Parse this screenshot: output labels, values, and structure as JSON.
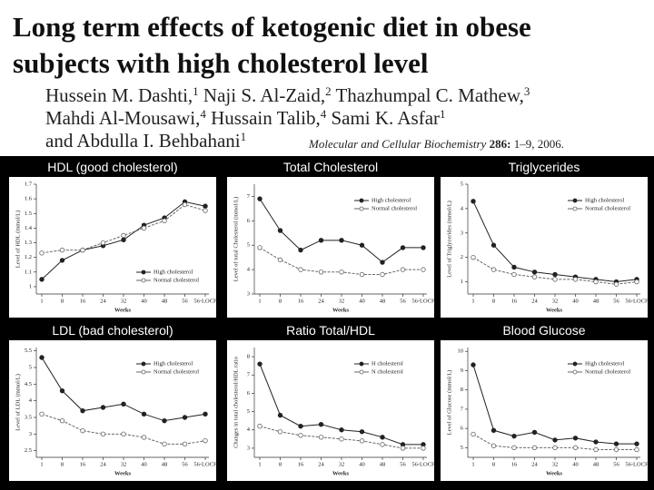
{
  "header": {
    "title_lines": [
      "Long term effects of ketogenic diet in obese",
      "subjects with high cholesterol level"
    ],
    "author_lines": [
      [
        {
          "name": "Hussein M. Dashti,",
          "sup": "1"
        },
        {
          "name": " Naji S. Al-Zaid,",
          "sup": "2"
        },
        {
          "name": " Thazhumpal C. Mathew,",
          "sup": "3"
        }
      ],
      [
        {
          "name": "Mahdi Al-Mousawi,",
          "sup": "4"
        },
        {
          "name": " Hussain Talib,",
          "sup": "4"
        },
        {
          "name": " Sami K. Asfar",
          "sup": "1"
        }
      ],
      [
        {
          "name": "and Abdulla I. Behbahani",
          "sup": "1"
        }
      ]
    ],
    "journal": "Molecular and Cellular Biochemistry",
    "volume": "286:",
    "pages": "1–9, 2006."
  },
  "chart_data": [
    {
      "type": "line",
      "title": "HDL (good cholesterol)",
      "y_label": "Level of HDL (mmol/L)",
      "x_label": "Weeks",
      "categories": [
        "1",
        "8",
        "16",
        "24",
        "32",
        "40",
        "48",
        "56",
        "56-LOCF"
      ],
      "series": [
        {
          "name": "High cholesterol",
          "color": "#222222",
          "marker": "filled",
          "values": [
            1.05,
            1.18,
            1.25,
            1.28,
            1.32,
            1.42,
            1.47,
            1.58,
            1.55
          ]
        },
        {
          "name": "Normal cholesterol",
          "color": "#666666",
          "marker": "open",
          "values": [
            1.23,
            1.25,
            1.25,
            1.3,
            1.35,
            1.4,
            1.45,
            1.56,
            1.52
          ]
        }
      ],
      "ylim": [
        0.95,
        1.7
      ],
      "yticks": [
        1,
        1.1,
        1.2,
        1.3,
        1.4,
        1.5,
        1.6,
        1.7
      ],
      "legend": "lower right"
    },
    {
      "type": "line",
      "title": "Total Cholesterol",
      "y_label": "Level of total Cholesterol (mmol/L)",
      "x_label": "Weeks",
      "categories": [
        "1",
        "8",
        "16",
        "24",
        "32",
        "40",
        "48",
        "56",
        "56-LOCF"
      ],
      "series": [
        {
          "name": "High cholesterol",
          "color": "#222222",
          "marker": "filled",
          "values": [
            6.9,
            5.6,
            4.8,
            5.2,
            5.2,
            5.0,
            4.3,
            4.9,
            4.9
          ]
        },
        {
          "name": "Normal cholesterol",
          "color": "#666666",
          "marker": "open",
          "values": [
            4.9,
            4.4,
            4.0,
            3.9,
            3.9,
            3.8,
            3.8,
            4.0,
            4.0
          ]
        }
      ],
      "ylim": [
        3,
        7.5
      ],
      "yticks": [
        3,
        4,
        5,
        6,
        7
      ],
      "legend": "upper right"
    },
    {
      "type": "line",
      "title": "Triglycerides",
      "y_label": "Level of Triglycerides (mmol/L)",
      "x_label": "Weeks",
      "categories": [
        "1",
        "8",
        "16",
        "24",
        "32",
        "40",
        "48",
        "56",
        "56-LOCF"
      ],
      "series": [
        {
          "name": "High cholesterol",
          "color": "#222222",
          "marker": "filled",
          "values": [
            4.3,
            2.5,
            1.6,
            1.4,
            1.3,
            1.2,
            1.1,
            1.0,
            1.1
          ]
        },
        {
          "name": "Normal cholesterol",
          "color": "#666666",
          "marker": "open",
          "values": [
            2.0,
            1.5,
            1.3,
            1.2,
            1.1,
            1.1,
            1.0,
            0.9,
            1.0
          ]
        }
      ],
      "ylim": [
        0.5,
        5
      ],
      "yticks": [
        1,
        2,
        3,
        4,
        5
      ],
      "legend": "upper right"
    },
    {
      "type": "line",
      "title": "LDL (bad cholesterol)",
      "y_label": "Level of LDL (mmol/L)",
      "x_label": "Weeks",
      "categories": [
        "1",
        "8",
        "16",
        "24",
        "32",
        "40",
        "48",
        "56",
        "56-LOCF"
      ],
      "series": [
        {
          "name": "High cholesterol",
          "color": "#222222",
          "marker": "filled",
          "values": [
            5.3,
            4.3,
            3.7,
            3.8,
            3.9,
            3.6,
            3.4,
            3.5,
            3.6
          ]
        },
        {
          "name": "Normal cholesterol",
          "color": "#666666",
          "marker": "open",
          "values": [
            3.6,
            3.4,
            3.1,
            3.0,
            3.0,
            2.9,
            2.7,
            2.7,
            2.8
          ]
        }
      ],
      "ylim": [
        2.3,
        5.6
      ],
      "yticks": [
        2.5,
        3,
        3.5,
        4,
        4.5,
        5,
        5.5
      ],
      "legend": "upper right"
    },
    {
      "type": "line",
      "title": "Ratio Total/HDL",
      "y_label": "Changes in total cholesterol/HDL ratio",
      "x_label": "Weeks",
      "categories": [
        "1",
        "8",
        "16",
        "24",
        "32",
        "40",
        "48",
        "56",
        "56-LOCF"
      ],
      "series": [
        {
          "name": "H cholesterol",
          "color": "#222222",
          "marker": "filled",
          "values": [
            7.6,
            4.8,
            4.2,
            4.3,
            4.0,
            3.9,
            3.6,
            3.2,
            3.2
          ]
        },
        {
          "name": "N cholesterol",
          "color": "#666666",
          "marker": "open",
          "values": [
            4.2,
            3.9,
            3.7,
            3.6,
            3.5,
            3.4,
            3.2,
            3.0,
            3.0
          ]
        }
      ],
      "ylim": [
        2.5,
        8.5
      ],
      "yticks": [
        3,
        4,
        5,
        6,
        7,
        8
      ],
      "legend": "upper right"
    },
    {
      "type": "line",
      "title": "Blood Glucose",
      "y_label": "Level of Glucose (mmol/L)",
      "x_label": "Weeks",
      "categories": [
        "1",
        "8",
        "16",
        "24",
        "32",
        "40",
        "48",
        "56",
        "56-LOCF"
      ],
      "series": [
        {
          "name": "High cholesterol",
          "color": "#222222",
          "marker": "filled",
          "values": [
            9.3,
            5.9,
            5.6,
            5.8,
            5.4,
            5.5,
            5.3,
            5.2,
            5.2
          ]
        },
        {
          "name": "Normal cholesterol",
          "color": "#666666",
          "marker": "open",
          "values": [
            5.7,
            5.1,
            5.0,
            5.0,
            5.0,
            5.0,
            4.9,
            4.9,
            4.9
          ]
        }
      ],
      "ylim": [
        4.5,
        10.2
      ],
      "yticks": [
        5,
        6,
        7,
        8,
        9,
        10
      ],
      "legend": "upper right"
    }
  ]
}
